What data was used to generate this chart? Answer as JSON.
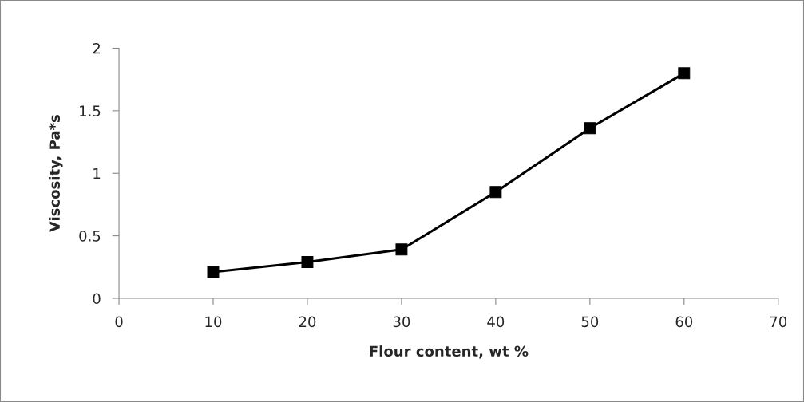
{
  "chart_data": {
    "type": "line",
    "xlabel": "Flour content, wt %",
    "ylabel": "Viscosity, Pa*s",
    "x": [
      10,
      20,
      30,
      40,
      50,
      60
    ],
    "series": [
      {
        "color": "#000000",
        "values": [
          0.21,
          0.29,
          0.39,
          0.85,
          1.36,
          1.8
        ]
      }
    ],
    "xlim": [
      0,
      70
    ],
    "xticks": [
      0,
      10,
      20,
      30,
      40,
      50,
      60,
      70
    ],
    "ylim": [
      0,
      2
    ],
    "yticks": [
      0,
      0.5,
      1,
      1.5,
      2
    ],
    "marker": "square",
    "line_style": "solid",
    "grid": false
  }
}
